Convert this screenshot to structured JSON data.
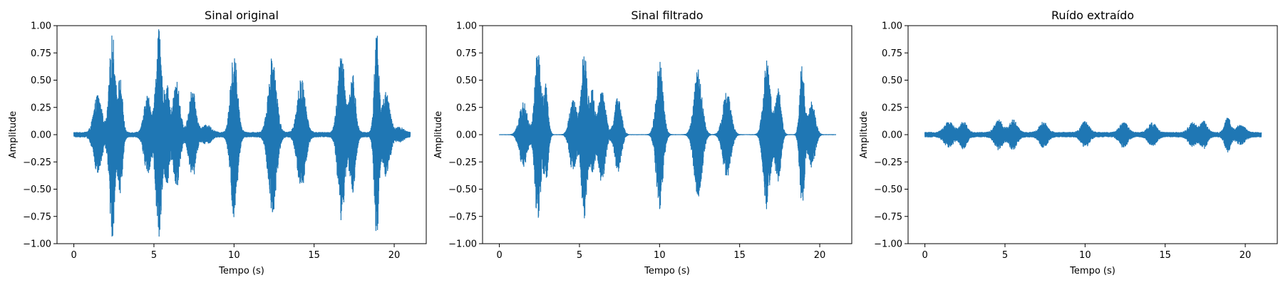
{
  "chart_data": [
    {
      "type": "line",
      "title": "Sinal original",
      "xlabel": "Tempo (s)",
      "ylabel": "Amplitude",
      "xlim": [
        -1.05,
        22
      ],
      "ylim": [
        -1.0,
        1.0
      ],
      "xticks": [
        0,
        5,
        10,
        15,
        20
      ],
      "xtick_labels": [
        "0",
        "5",
        "10",
        "15",
        "20"
      ],
      "yticks": [
        -1.0,
        -0.75,
        -0.5,
        -0.25,
        0.0,
        0.25,
        0.5,
        0.75,
        1.0
      ],
      "ytick_labels": [
        "−1.00",
        "−0.75",
        "−0.50",
        "−0.25",
        "0.00",
        "0.25",
        "0.50",
        "0.75",
        "1.00"
      ],
      "grid": false,
      "series": [
        {
          "color": "#1f77b4",
          "baseline_amplitude": 0.025,
          "x_range": [
            0,
            21
          ],
          "bursts": [
            {
              "t": 1.5,
              "amp": 0.35,
              "w": 0.35
            },
            {
              "t": 2.4,
              "amp": 0.92,
              "w": 0.25
            },
            {
              "t": 2.9,
              "amp": 0.5,
              "w": 0.2
            },
            {
              "t": 4.6,
              "amp": 0.35,
              "w": 0.3
            },
            {
              "t": 5.3,
              "amp": 0.94,
              "w": 0.25
            },
            {
              "t": 5.8,
              "amp": 0.45,
              "w": 0.2
            },
            {
              "t": 6.4,
              "amp": 0.48,
              "w": 0.3
            },
            {
              "t": 7.4,
              "amp": 0.4,
              "w": 0.3
            },
            {
              "t": 8.3,
              "amp": 0.07,
              "w": 0.4
            },
            {
              "t": 10.0,
              "amp": 0.75,
              "w": 0.3
            },
            {
              "t": 12.4,
              "amp": 0.72,
              "w": 0.35
            },
            {
              "t": 14.2,
              "amp": 0.5,
              "w": 0.35
            },
            {
              "t": 16.7,
              "amp": 0.78,
              "w": 0.3
            },
            {
              "t": 17.4,
              "amp": 0.55,
              "w": 0.25
            },
            {
              "t": 18.9,
              "amp": 0.95,
              "w": 0.2
            },
            {
              "t": 19.5,
              "amp": 0.4,
              "w": 0.3
            },
            {
              "t": 20.3,
              "amp": 0.05,
              "w": 0.4
            }
          ]
        }
      ]
    },
    {
      "type": "line",
      "title": "Sinal filtrado",
      "xlabel": "Tempo (s)",
      "ylabel": "Amplitude",
      "xlim": [
        -1.05,
        22
      ],
      "ylim": [
        -1.0,
        1.0
      ],
      "xticks": [
        0,
        5,
        10,
        15,
        20
      ],
      "xtick_labels": [
        "0",
        "5",
        "10",
        "15",
        "20"
      ],
      "yticks": [
        -1.0,
        -0.75,
        -0.5,
        -0.25,
        0.0,
        0.25,
        0.5,
        0.75,
        1.0
      ],
      "ytick_labels": [
        "−1.00",
        "−0.75",
        "−0.50",
        "−0.25",
        "0.00",
        "0.25",
        "0.50",
        "0.75",
        "1.00"
      ],
      "grid": false,
      "series": [
        {
          "color": "#1f77b4",
          "baseline_amplitude": 0.004,
          "x_range": [
            0,
            21
          ],
          "bursts": [
            {
              "t": 1.5,
              "amp": 0.3,
              "w": 0.35
            },
            {
              "t": 2.4,
              "amp": 0.83,
              "w": 0.25
            },
            {
              "t": 2.9,
              "amp": 0.45,
              "w": 0.2
            },
            {
              "t": 4.6,
              "amp": 0.35,
              "w": 0.3
            },
            {
              "t": 5.3,
              "amp": 0.81,
              "w": 0.25
            },
            {
              "t": 5.8,
              "amp": 0.4,
              "w": 0.2
            },
            {
              "t": 6.4,
              "amp": 0.45,
              "w": 0.3
            },
            {
              "t": 7.4,
              "amp": 0.35,
              "w": 0.3
            },
            {
              "t": 10.0,
              "amp": 0.68,
              "w": 0.3
            },
            {
              "t": 12.4,
              "amp": 0.6,
              "w": 0.35
            },
            {
              "t": 14.2,
              "amp": 0.4,
              "w": 0.35
            },
            {
              "t": 16.7,
              "amp": 0.7,
              "w": 0.3
            },
            {
              "t": 17.4,
              "amp": 0.45,
              "w": 0.25
            },
            {
              "t": 18.9,
              "amp": 0.7,
              "w": 0.2
            },
            {
              "t": 19.5,
              "amp": 0.3,
              "w": 0.3
            }
          ]
        }
      ]
    },
    {
      "type": "line",
      "title": "Ruído extraído",
      "xlabel": "Tempo (s)",
      "ylabel": "Amplitude",
      "xlim": [
        -1.05,
        22
      ],
      "ylim": [
        -1.0,
        1.0
      ],
      "xticks": [
        0,
        5,
        10,
        15,
        20
      ],
      "xtick_labels": [
        "0",
        "5",
        "10",
        "15",
        "20"
      ],
      "yticks": [
        -1.0,
        -0.75,
        -0.5,
        -0.25,
        0.0,
        0.25,
        0.5,
        0.75,
        1.0
      ],
      "ytick_labels": [
        "−1.00",
        "−0.75",
        "−0.50",
        "−0.25",
        "0.00",
        "0.25",
        "0.50",
        "0.75",
        "1.00"
      ],
      "grid": false,
      "series": [
        {
          "color": "#1f77b4",
          "baseline_amplitude": 0.025,
          "x_range": [
            0,
            21
          ],
          "bursts": [
            {
              "t": 1.5,
              "amp": 0.1,
              "w": 0.4
            },
            {
              "t": 2.4,
              "amp": 0.11,
              "w": 0.3
            },
            {
              "t": 4.6,
              "amp": 0.12,
              "w": 0.35
            },
            {
              "t": 5.5,
              "amp": 0.12,
              "w": 0.35
            },
            {
              "t": 7.4,
              "amp": 0.1,
              "w": 0.35
            },
            {
              "t": 10.0,
              "amp": 0.1,
              "w": 0.35
            },
            {
              "t": 12.4,
              "amp": 0.1,
              "w": 0.35
            },
            {
              "t": 14.2,
              "amp": 0.09,
              "w": 0.35
            },
            {
              "t": 16.7,
              "amp": 0.09,
              "w": 0.35
            },
            {
              "t": 17.4,
              "amp": 0.11,
              "w": 0.3
            },
            {
              "t": 18.9,
              "amp": 0.14,
              "w": 0.25
            },
            {
              "t": 19.7,
              "amp": 0.07,
              "w": 0.4
            }
          ]
        }
      ]
    }
  ]
}
